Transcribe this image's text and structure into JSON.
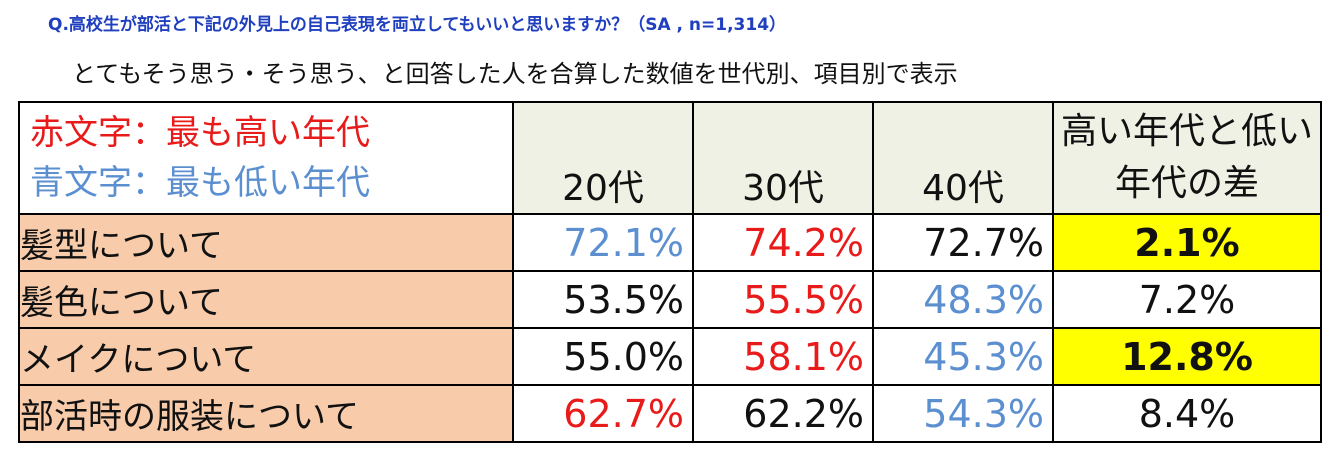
{
  "question": "Q.高校生が部活と下記の外見上の自己表現を両立してもいいと思いますか？（SA , n=1,314）",
  "subtitle": "とてもそう思う・そう思う、と回答した人を合算した数値を世代別、項目別で表示",
  "legend": {
    "red_note": "赤文字：最も高い年代",
    "blue_note": "青文字：最も低い年代"
  },
  "colors": {
    "highest": "#e81a1a",
    "lowest": "#5b8fd0",
    "normal": "#111111",
    "highlight_bg": "#ffff00",
    "label_bg": "#f8ccab",
    "header_bg": "#eef1e4",
    "question_text": "#1f3fbf"
  },
  "columns": {
    "age_20": "20代",
    "age_30": "30代",
    "age_40": "40代",
    "diff": "高い年代と低い年代の差"
  },
  "rows": [
    {
      "label": "髪型について",
      "v20": "72.1%",
      "v20_style": "lowest",
      "v30": "74.2%",
      "v30_style": "highest",
      "v40": "72.7%",
      "v40_style": "normal",
      "diff": "2.1%",
      "diff_highlight": true
    },
    {
      "label": "髪色について",
      "v20": "53.5%",
      "v20_style": "normal",
      "v30": "55.5%",
      "v30_style": "highest",
      "v40": "48.3%",
      "v40_style": "lowest",
      "diff": "7.2%",
      "diff_highlight": false
    },
    {
      "label": "メイクについて",
      "v20": "55.0%",
      "v20_style": "normal",
      "v30": "58.1%",
      "v30_style": "highest",
      "v40": "45.3%",
      "v40_style": "lowest",
      "diff": "12.8%",
      "diff_highlight": true
    },
    {
      "label": "部活時の服装について",
      "v20": "62.7%",
      "v20_style": "highest",
      "v30": "62.2%",
      "v30_style": "normal",
      "v40": "54.3%",
      "v40_style": "lowest",
      "diff": "8.4%",
      "diff_highlight": false
    }
  ],
  "chart_data": {
    "type": "table",
    "title": "Q.高校生が部活と下記の外見上の自己表現を両立してもいいと思いますか？（SA , n=1,314）",
    "columns": [
      "20代",
      "30代",
      "40代",
      "高い年代と低い年代の差"
    ],
    "rows": [
      {
        "label": "髪型について",
        "values": [
          72.1,
          74.2,
          72.7,
          2.1
        ]
      },
      {
        "label": "髪色について",
        "values": [
          53.5,
          55.5,
          48.3,
          7.2
        ]
      },
      {
        "label": "メイクについて",
        "values": [
          55.0,
          58.1,
          45.3,
          12.8
        ]
      },
      {
        "label": "部活時の服装について",
        "values": [
          62.7,
          62.2,
          54.3,
          8.4
        ]
      }
    ],
    "unit": "%"
  }
}
